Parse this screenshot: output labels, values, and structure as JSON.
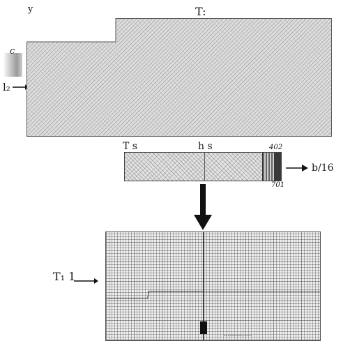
{
  "labels": {
    "top_left": "y",
    "top_title": "T:",
    "left_c": "c",
    "left_marker": "l₂",
    "mid_left": "T ꜱ",
    "mid_center": "h ꜱ",
    "mid_right_top": "402",
    "mid_right_bottom": "701",
    "mid_right_output": "b/16",
    "bottom_left": "T₁ 1"
  },
  "colors": {
    "ink": "#111111",
    "panel_fill": "#dcdcdc"
  },
  "icons": {
    "flow_arrow_down": "arrow-down-icon",
    "arrow_right": "arrow-right-icon"
  }
}
